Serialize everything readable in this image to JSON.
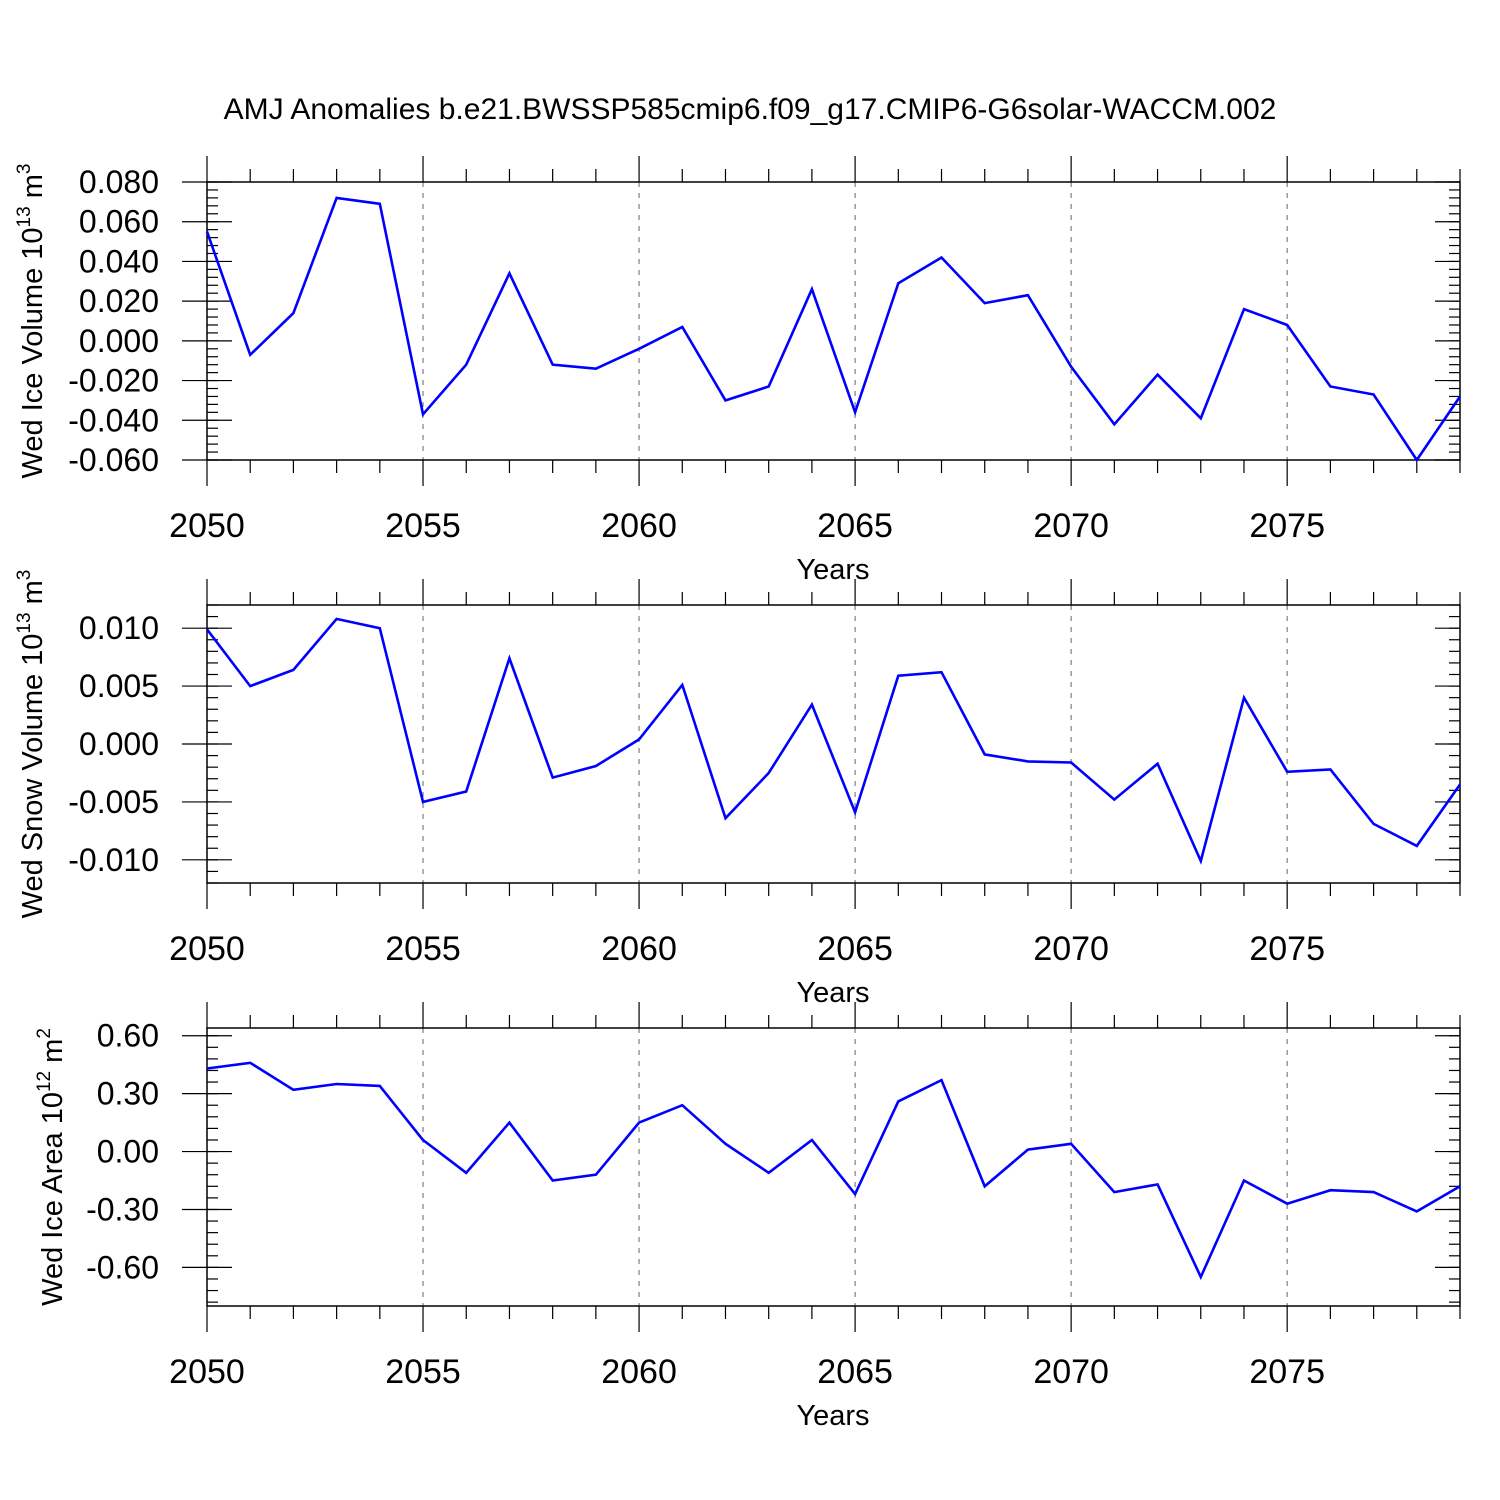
{
  "title": "AMJ Anomalies b.e21.BWSSP585cmip6.f09_g17.CMIP6-G6solar-WACCM.002",
  "colors": {
    "series": "#0000ff",
    "frame": "#000000",
    "grid": "#888888"
  },
  "chart_data": [
    {
      "type": "line",
      "ylabel": "Wed Ice Volume 10",
      "ylabel_exp": "13",
      "ylabel_unit": " m",
      "ylabel_unit_exp": "3",
      "xlabel": "Years",
      "xlim": [
        2050,
        2079
      ],
      "ylim": [
        -0.06,
        0.08
      ],
      "yticks": [
        -0.06,
        -0.04,
        -0.02,
        0.0,
        0.02,
        0.04,
        0.06,
        0.08
      ],
      "ytick_labels": [
        "-0.060",
        "-0.040",
        "-0.020",
        "0.000",
        "0.020",
        "0.040",
        "0.060",
        "0.080"
      ],
      "xticks": [
        2050,
        2055,
        2060,
        2065,
        2070,
        2075
      ],
      "xtick_labels": [
        "2050",
        "2055",
        "2060",
        "2065",
        "2070",
        "2075"
      ],
      "grid": "dashed vertical at major x ticks",
      "x": [
        2050,
        2051,
        2052,
        2053,
        2054,
        2055,
        2056,
        2057,
        2058,
        2059,
        2060,
        2061,
        2062,
        2063,
        2064,
        2065,
        2066,
        2067,
        2068,
        2069,
        2070,
        2071,
        2072,
        2073,
        2074,
        2075,
        2076,
        2077,
        2078,
        2079
      ],
      "values": [
        0.055,
        -0.007,
        0.014,
        0.072,
        0.069,
        -0.037,
        -0.012,
        0.034,
        -0.012,
        -0.014,
        -0.004,
        0.007,
        -0.03,
        -0.023,
        0.026,
        -0.036,
        0.029,
        0.042,
        0.019,
        0.023,
        -0.013,
        -0.042,
        -0.017,
        -0.039,
        0.016,
        0.008,
        -0.023,
        -0.027,
        -0.06,
        -0.028
      ]
    },
    {
      "type": "line",
      "ylabel": "Wed Snow Volume 10",
      "ylabel_exp": "13",
      "ylabel_unit": " m",
      "ylabel_unit_exp": "3",
      "xlabel": "Years",
      "xlim": [
        2050,
        2079
      ],
      "ylim": [
        -0.012,
        0.012
      ],
      "yticks": [
        -0.01,
        -0.005,
        0.0,
        0.005,
        0.01
      ],
      "ytick_labels": [
        "-0.010",
        "-0.005",
        "0.000",
        "0.005",
        "0.010"
      ],
      "xticks": [
        2050,
        2055,
        2060,
        2065,
        2070,
        2075
      ],
      "xtick_labels": [
        "2050",
        "2055",
        "2060",
        "2065",
        "2070",
        "2075"
      ],
      "grid": "dashed vertical at major x ticks",
      "x": [
        2050,
        2051,
        2052,
        2053,
        2054,
        2055,
        2056,
        2057,
        2058,
        2059,
        2060,
        2061,
        2062,
        2063,
        2064,
        2065,
        2066,
        2067,
        2068,
        2069,
        2070,
        2071,
        2072,
        2073,
        2074,
        2075,
        2076,
        2077,
        2078,
        2079
      ],
      "values": [
        0.0099,
        0.005,
        0.0064,
        0.0108,
        0.01,
        -0.005,
        -0.0041,
        0.0074,
        -0.0029,
        -0.0019,
        0.0004,
        0.0051,
        -0.0064,
        -0.0025,
        0.0034,
        -0.0059,
        0.0059,
        0.0062,
        -0.0009,
        -0.0015,
        -0.0016,
        -0.0048,
        -0.0017,
        -0.0101,
        0.004,
        -0.0024,
        -0.0022,
        -0.0069,
        -0.0088,
        -0.0035
      ]
    },
    {
      "type": "line",
      "ylabel": "Wed Ice Area 10",
      "ylabel_exp": "12",
      "ylabel_unit": " m",
      "ylabel_unit_exp": "2",
      "xlabel": "Years",
      "xlim": [
        2050,
        2079
      ],
      "ylim": [
        -0.8,
        0.64
      ],
      "yticks": [
        -0.6,
        -0.3,
        0.0,
        0.3,
        0.6
      ],
      "ytick_labels": [
        "-0.60",
        "-0.30",
        "0.00",
        "0.30",
        "0.60"
      ],
      "xticks": [
        2050,
        2055,
        2060,
        2065,
        2070,
        2075
      ],
      "xtick_labels": [
        "2050",
        "2055",
        "2060",
        "2065",
        "2070",
        "2075"
      ],
      "grid": "dashed vertical at major x ticks",
      "x": [
        2050,
        2051,
        2052,
        2053,
        2054,
        2055,
        2056,
        2057,
        2058,
        2059,
        2060,
        2061,
        2062,
        2063,
        2064,
        2065,
        2066,
        2067,
        2068,
        2069,
        2070,
        2071,
        2072,
        2073,
        2074,
        2075,
        2076,
        2077,
        2078,
        2079
      ],
      "values": [
        0.43,
        0.46,
        0.32,
        0.35,
        0.34,
        0.06,
        -0.11,
        0.15,
        -0.15,
        -0.12,
        0.15,
        0.24,
        0.04,
        -0.11,
        0.06,
        -0.22,
        0.26,
        0.37,
        -0.18,
        0.01,
        0.04,
        -0.21,
        -0.17,
        -0.65,
        -0.15,
        -0.27,
        -0.2,
        -0.21,
        -0.31,
        -0.18
      ]
    }
  ]
}
